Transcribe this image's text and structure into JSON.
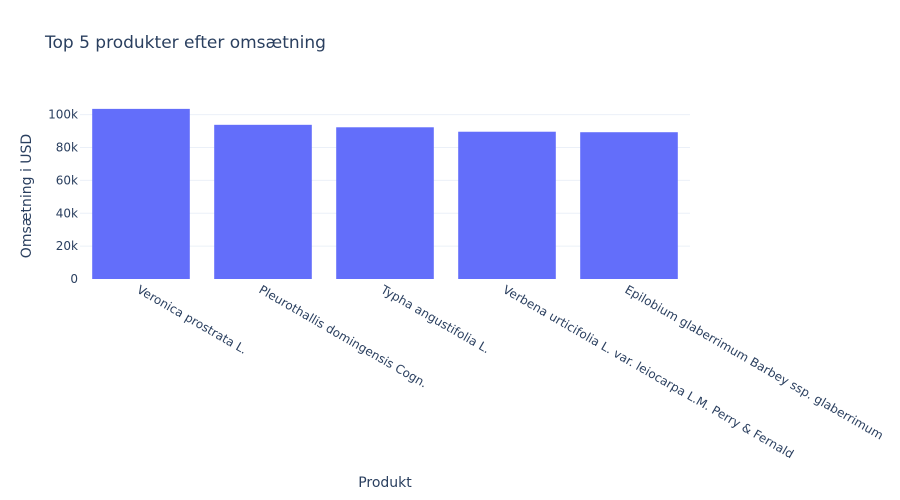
{
  "chart_data": {
    "type": "bar",
    "title": "Top 5 produkter efter omsætning",
    "xlabel": "Produkt",
    "ylabel": "Omsætning i USD",
    "categories": [
      "Veronica prostrata L.",
      "Pleurothallis domingensis Cogn.",
      "Typha angustifolia L.",
      "Verbena urticifolia L. var. leiocarpa L.M. Perry & Fernald",
      "Epilobium glaberrimum Barbey ssp. glaberrimum"
    ],
    "values": [
      103500,
      93800,
      92300,
      89600,
      89300
    ],
    "ylim": [
      0,
      108900
    ],
    "yticks": [
      0,
      20000,
      40000,
      60000,
      80000,
      100000
    ],
    "ytick_labels": [
      "0",
      "20k",
      "40k",
      "60k",
      "80k",
      "100k"
    ],
    "grid": true,
    "bar_color": "#636efa",
    "grid_color": "#ebf0f8",
    "text_color": "#2a3f5f"
  }
}
